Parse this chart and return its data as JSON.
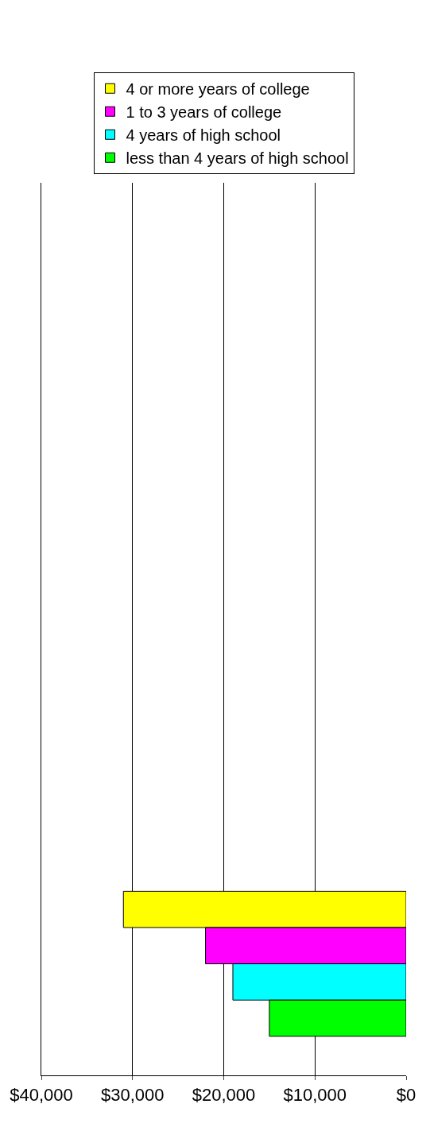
{
  "chart_data": {
    "type": "bar",
    "orientation": "horizontal",
    "categories": [
      null,
      null,
      null,
      null
    ],
    "series": [
      {
        "name": "4 or more years of college",
        "color": "#ffff00",
        "values": [
          null,
          null,
          null,
          31000
        ]
      },
      {
        "name": "1 to 3 years of college",
        "color": "#ff00ff",
        "values": [
          null,
          null,
          null,
          22000
        ]
      },
      {
        "name": "4 years of high school",
        "color": "#00ffff",
        "values": [
          null,
          null,
          null,
          19000
        ]
      },
      {
        "name": "less than 4 years of high school",
        "color": "#00ff00",
        "values": [
          null,
          null,
          null,
          15000
        ]
      }
    ],
    "xlim": [
      40000,
      0
    ],
    "xticks": [
      {
        "value": 40000,
        "label": "$40,000"
      },
      {
        "value": 30000,
        "label": "$30,000"
      },
      {
        "value": 20000,
        "label": "$20,000"
      },
      {
        "value": 10000,
        "label": "$10,000"
      },
      {
        "value": 0,
        "label": "$0"
      }
    ],
    "grid": "x",
    "legend": "top",
    "tick_labels": "x"
  }
}
